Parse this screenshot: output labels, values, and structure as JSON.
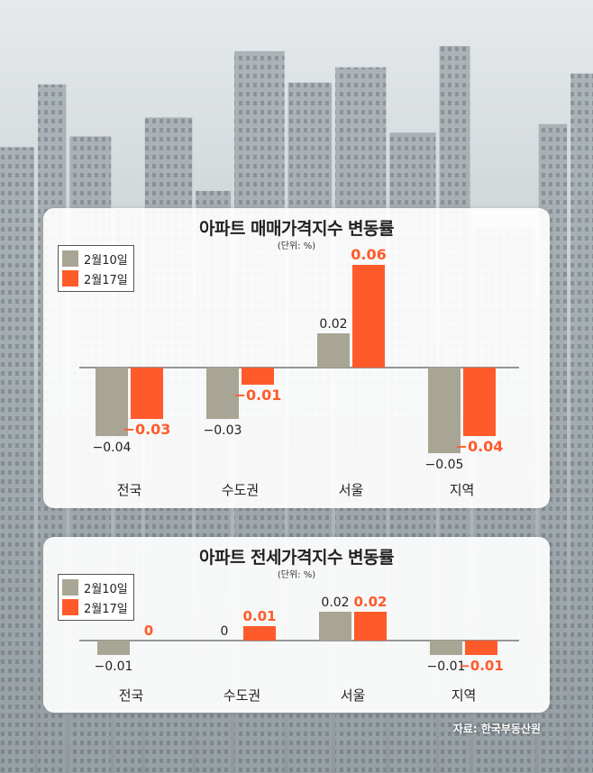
{
  "colors": {
    "week1": "#a8a594",
    "week2": "#ff5a2a",
    "text": "#222222"
  },
  "chart_data": [
    {
      "type": "bar",
      "title": "아파트 매매가격지수 변동률",
      "unit": "(단위: %)",
      "categories": [
        "전국",
        "수도권",
        "서울",
        "지역"
      ],
      "series": [
        {
          "name": "2월10일",
          "values": [
            -0.04,
            -0.03,
            0.02,
            -0.05
          ],
          "labels": [
            "−0.04",
            "−0.03",
            "0.02",
            "−0.05"
          ]
        },
        {
          "name": "2월17일",
          "values": [
            -0.03,
            -0.01,
            0.06,
            -0.04
          ],
          "labels": [
            "−0.03",
            "−0.01",
            "0.06",
            "−0.04"
          ]
        }
      ],
      "ylim": [
        -0.05,
        0.06
      ],
      "legend": "top-left"
    },
    {
      "type": "bar",
      "title": "아파트 전세가격지수 변동률",
      "unit": "(단위: %)",
      "categories": [
        "전국",
        "수도권",
        "서울",
        "지역"
      ],
      "series": [
        {
          "name": "2월10일",
          "values": [
            -0.01,
            0,
            0.02,
            -0.01
          ],
          "labels": [
            "−0.01",
            "0",
            "0.02",
            "−0.01"
          ]
        },
        {
          "name": "2월17일",
          "values": [
            0,
            0.01,
            0.02,
            -0.01
          ],
          "labels": [
            "0",
            "0.01",
            "0.02",
            "−0.01"
          ]
        }
      ],
      "ylim": [
        -0.01,
        0.02
      ],
      "legend": "top-left"
    }
  ],
  "source": "자료: 한국부동산원"
}
